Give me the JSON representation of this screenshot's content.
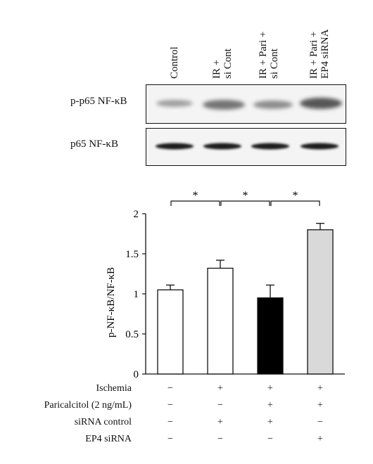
{
  "lanes": [
    {
      "line1": "Control",
      "line2": ""
    },
    {
      "line1": "IR +",
      "line2": "si Cont"
    },
    {
      "line1": "IR + Pari +",
      "line2": "si Cont"
    },
    {
      "line1": "IR + Pari +",
      "line2": "EP4 siRNA"
    }
  ],
  "blots": {
    "top_label": "p-p65 NF-κB",
    "bottom_label": "p65 NF-κB"
  },
  "chart_data": {
    "type": "bar",
    "categories": [
      "Control",
      "IR + si Cont",
      "IR + Pari + si Cont",
      "IR + Pari + EP4 siRNA"
    ],
    "values": [
      1.05,
      1.32,
      0.95,
      1.8
    ],
    "errors": [
      0.06,
      0.1,
      0.16,
      0.08
    ],
    "bar_colors": [
      "#ffffff",
      "#ffffff",
      "#000000",
      "#d9d9d9"
    ],
    "ylabel": "p-NF-κB/NF-κB",
    "ylim": [
      0,
      2
    ],
    "yticks": [
      0,
      0.5,
      1,
      1.5,
      2
    ],
    "ytick_labels": [
      "0",
      "0.5",
      "1",
      "1.5",
      "2"
    ],
    "significance": [
      {
        "from": 0,
        "to": 1,
        "label": "*"
      },
      {
        "from": 1,
        "to": 2,
        "label": "*"
      },
      {
        "from": 2,
        "to": 3,
        "label": "*"
      }
    ]
  },
  "conditions": [
    {
      "label": "Ischemia",
      "signs": [
        "−",
        "+",
        "+",
        "+"
      ]
    },
    {
      "label": "Paricalcitol (2 ng/mL)",
      "signs": [
        "−",
        "−",
        "+",
        "+"
      ]
    },
    {
      "label": "siRNA control",
      "signs": [
        "−",
        "+",
        "+",
        "−"
      ]
    },
    {
      "label": "EP4 siRNA",
      "signs": [
        "−",
        "−",
        "−",
        "+"
      ]
    }
  ]
}
